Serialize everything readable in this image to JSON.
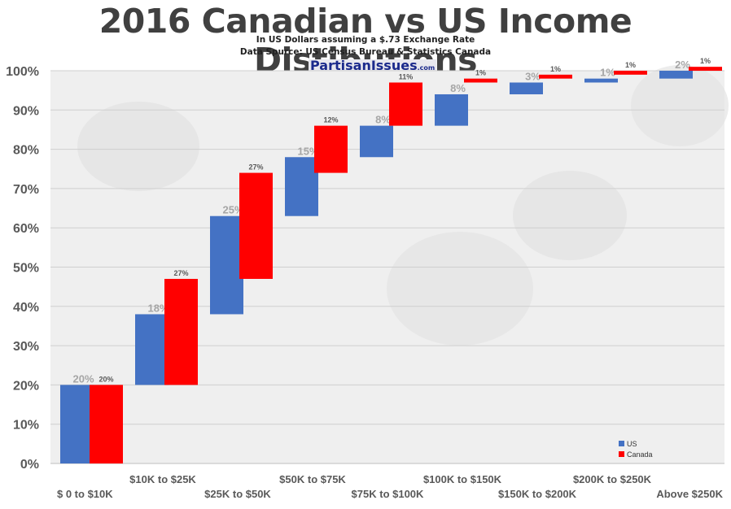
{
  "title": "2016 Canadian vs US Income Distibutions",
  "subtitle_1": "In US Dollars assuming a $.73 Exchange Rate",
  "subtitle_2": "Data Spurce: US Census Bureau & Statistics Canada",
  "logo": {
    "text": "PartisanIssues",
    "suffix": ".com"
  },
  "colors": {
    "us": "#4472C4",
    "canada": "#FF0000",
    "axis_text": "#595959",
    "label_gray": "#A6A6A6"
  },
  "chart_data": {
    "type": "bar",
    "subtype": "stacked waterfall (cumulative)",
    "categories": [
      "$ 0 to $10K",
      "$10K to $25K",
      "$25K to $50K",
      "$50K to $75K",
      "$75K to $100K",
      "$100K to $150K",
      "$150K to $200K",
      "$200K to $250K",
      "Above $250K"
    ],
    "series": [
      {
        "name": "US",
        "values": [
          20,
          18,
          25,
          15,
          8,
          8,
          3,
          1,
          2
        ],
        "labels": [
          "20%",
          "18%",
          "25%",
          "15%",
          "8%",
          "8%",
          "3%",
          "1%",
          "2%"
        ]
      },
      {
        "name": "Canada",
        "values": [
          20,
          27,
          27,
          12,
          11,
          1,
          1,
          1,
          1
        ],
        "labels": [
          "20%",
          "27%",
          "27%",
          "12%",
          "11%",
          "1%",
          "1%",
          "1%",
          "1%"
        ]
      }
    ],
    "y_ticks": [
      "0%",
      "10%",
      "20%",
      "30%",
      "40%",
      "50%",
      "60%",
      "70%",
      "80%",
      "90%",
      "100%"
    ],
    "ylim": [
      0,
      100
    ],
    "grid": true,
    "legend_position": "bottom-right"
  }
}
